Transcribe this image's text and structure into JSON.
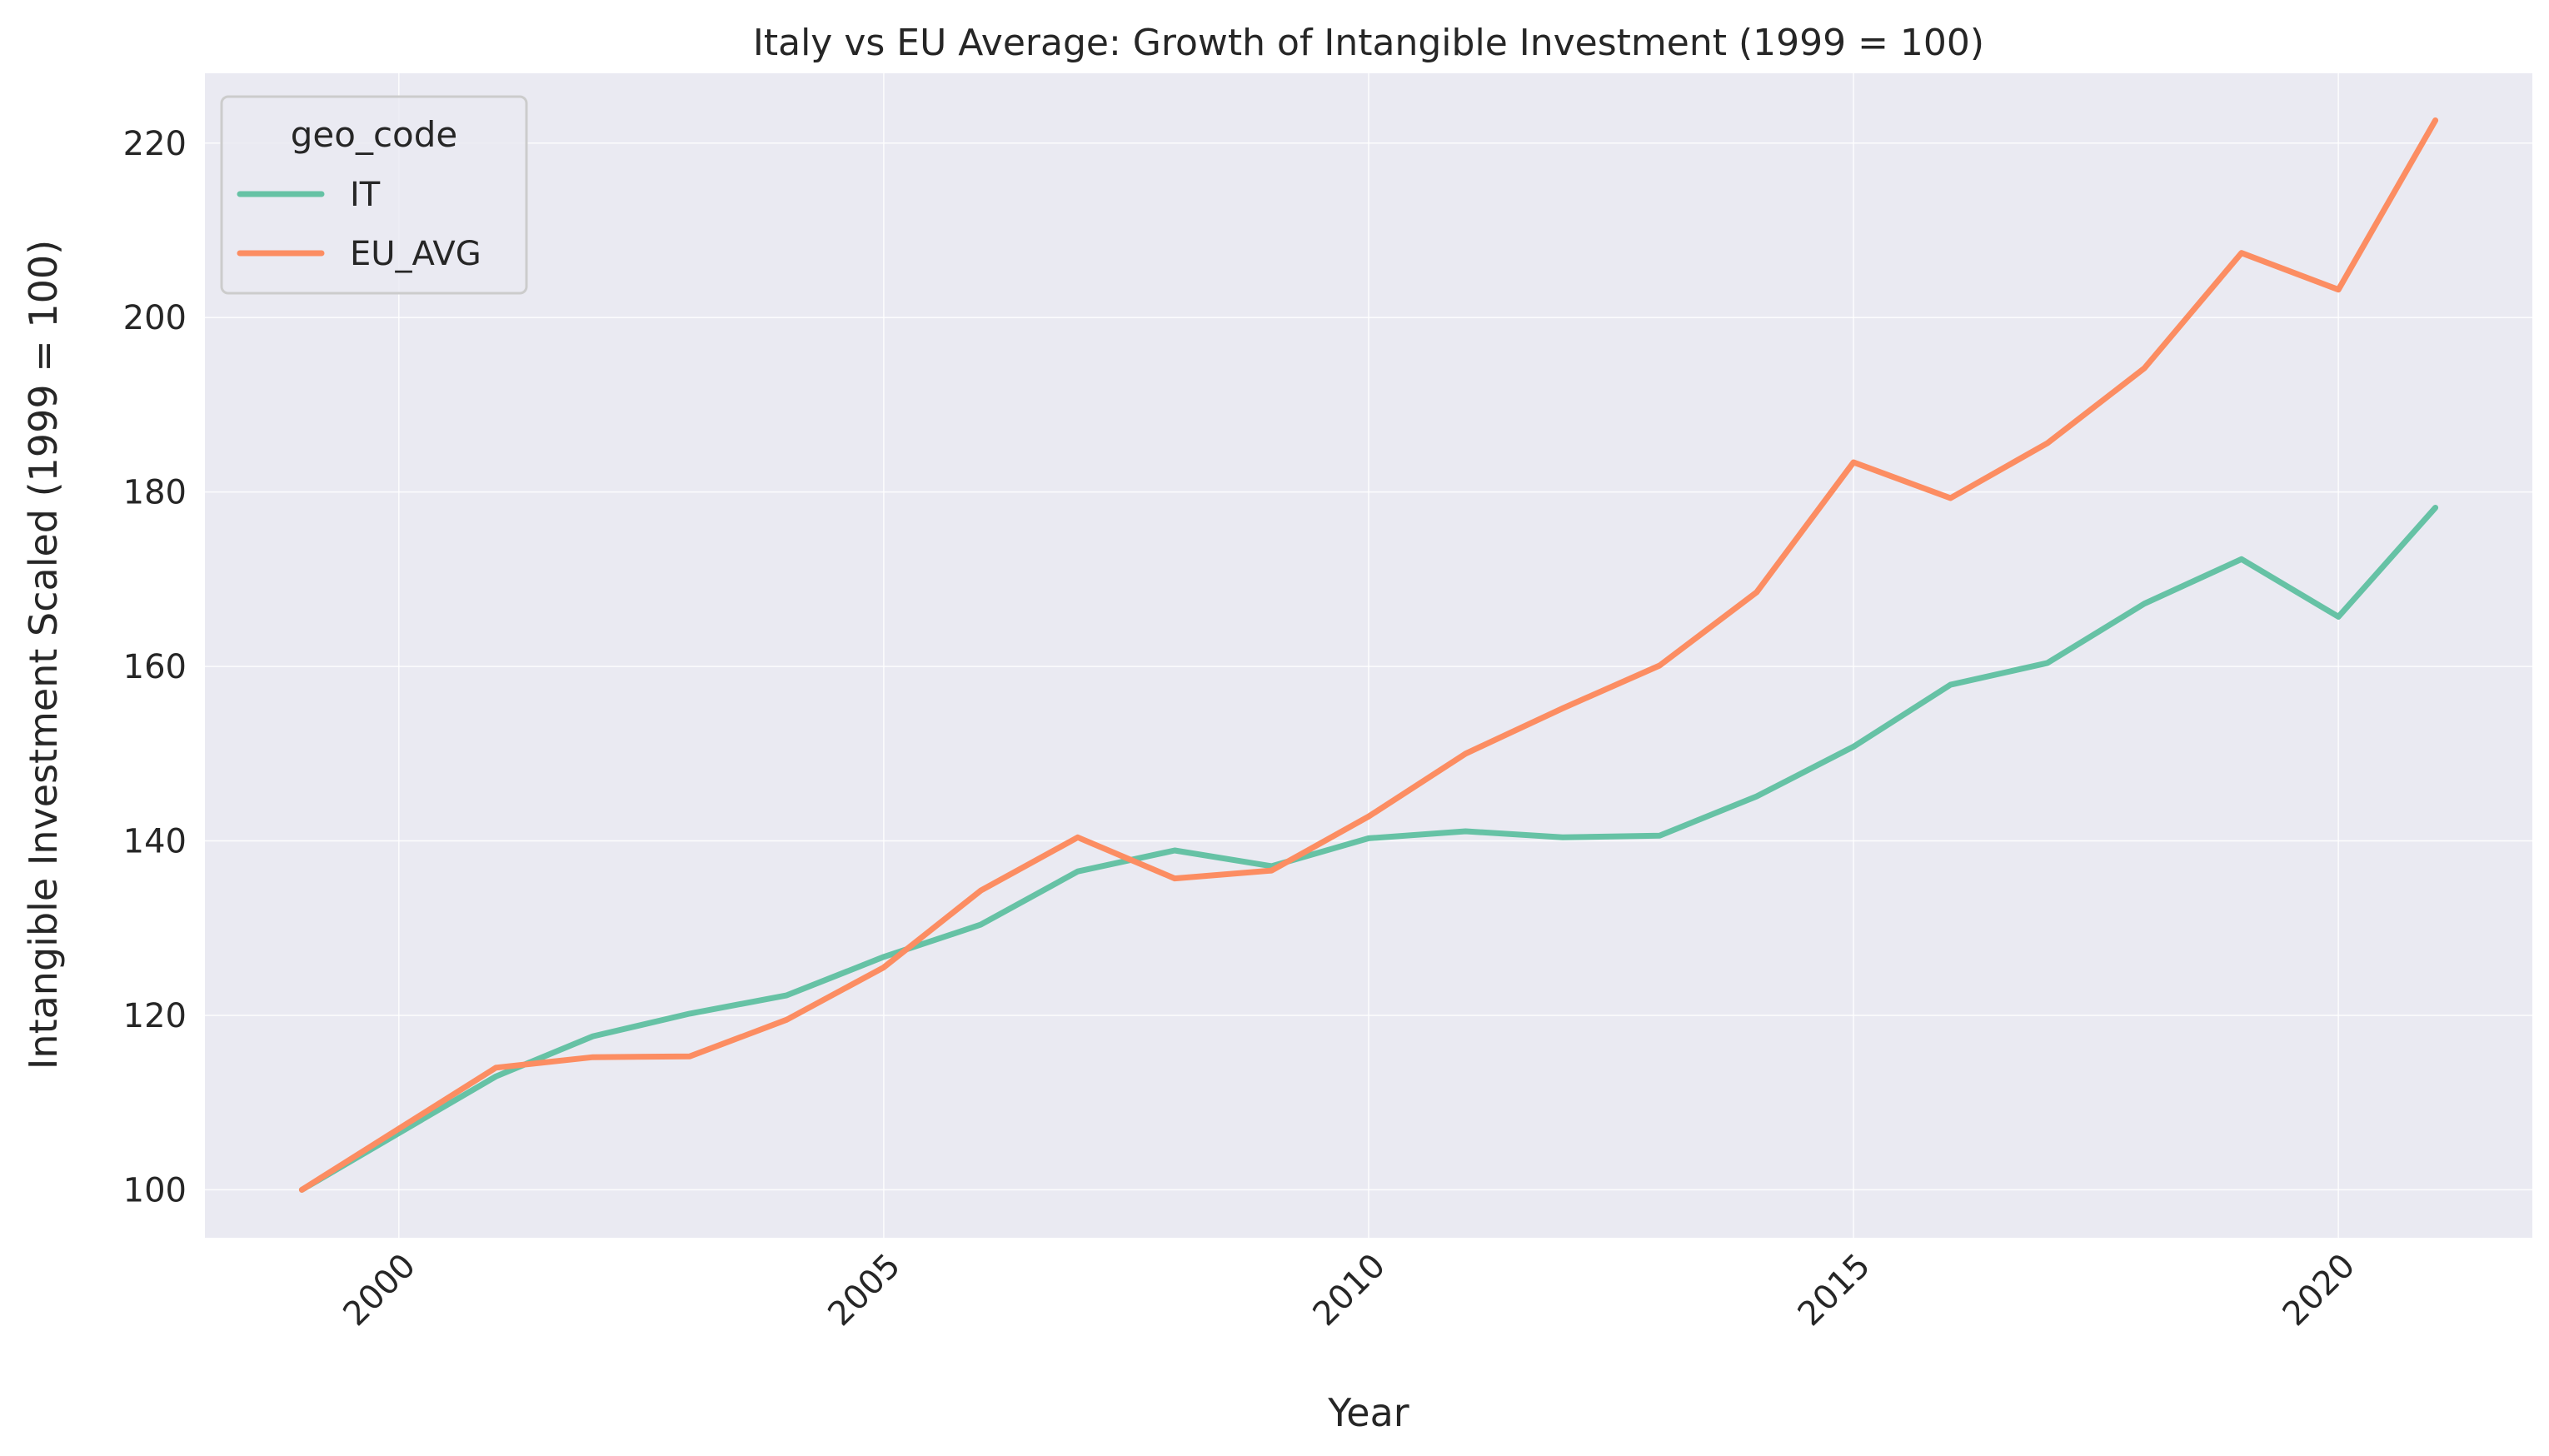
{
  "chart_data": {
    "type": "line",
    "title": "Italy vs EU Average: Growth of Intangible Investment (1999 = 100)",
    "xlabel": "Year",
    "ylabel": "Intangible Investment Scaled (1999 = 100)",
    "xlim": [
      1998,
      2022
    ],
    "ylim": [
      94.5,
      228
    ],
    "x_ticks": [
      2000,
      2005,
      2010,
      2015,
      2020
    ],
    "y_ticks": [
      100,
      120,
      140,
      160,
      180,
      200,
      220
    ],
    "grid": true,
    "legend": {
      "title": "geo_code",
      "placement": "top-left"
    },
    "x": [
      1999,
      2000,
      2001,
      2002,
      2003,
      2004,
      2005,
      2006,
      2007,
      2008,
      2009,
      2010,
      2011,
      2012,
      2013,
      2014,
      2015,
      2016,
      2017,
      2018,
      2019,
      2020,
      2021
    ],
    "series": [
      {
        "name": "IT",
        "color": "#66c2a5",
        "values": [
          100,
          106.5,
          113,
          117.6,
          120.2,
          122.3,
          126.7,
          130.4,
          136.5,
          138.9,
          137.1,
          140.3,
          141.1,
          140.4,
          140.6,
          145.1,
          150.8,
          157.9,
          160.4,
          167.2,
          172.3,
          165.7,
          178.2
        ]
      },
      {
        "name": "EU_AVG",
        "color": "#fc8d62",
        "values": [
          100,
          107,
          114,
          115.2,
          115.3,
          119.5,
          125.5,
          134.3,
          140.4,
          135.7,
          136.6,
          142.8,
          150,
          155.2,
          160.1,
          168.5,
          183.4,
          179.3,
          185.6,
          194.2,
          207.4,
          203.2,
          222.6
        ]
      }
    ]
  }
}
